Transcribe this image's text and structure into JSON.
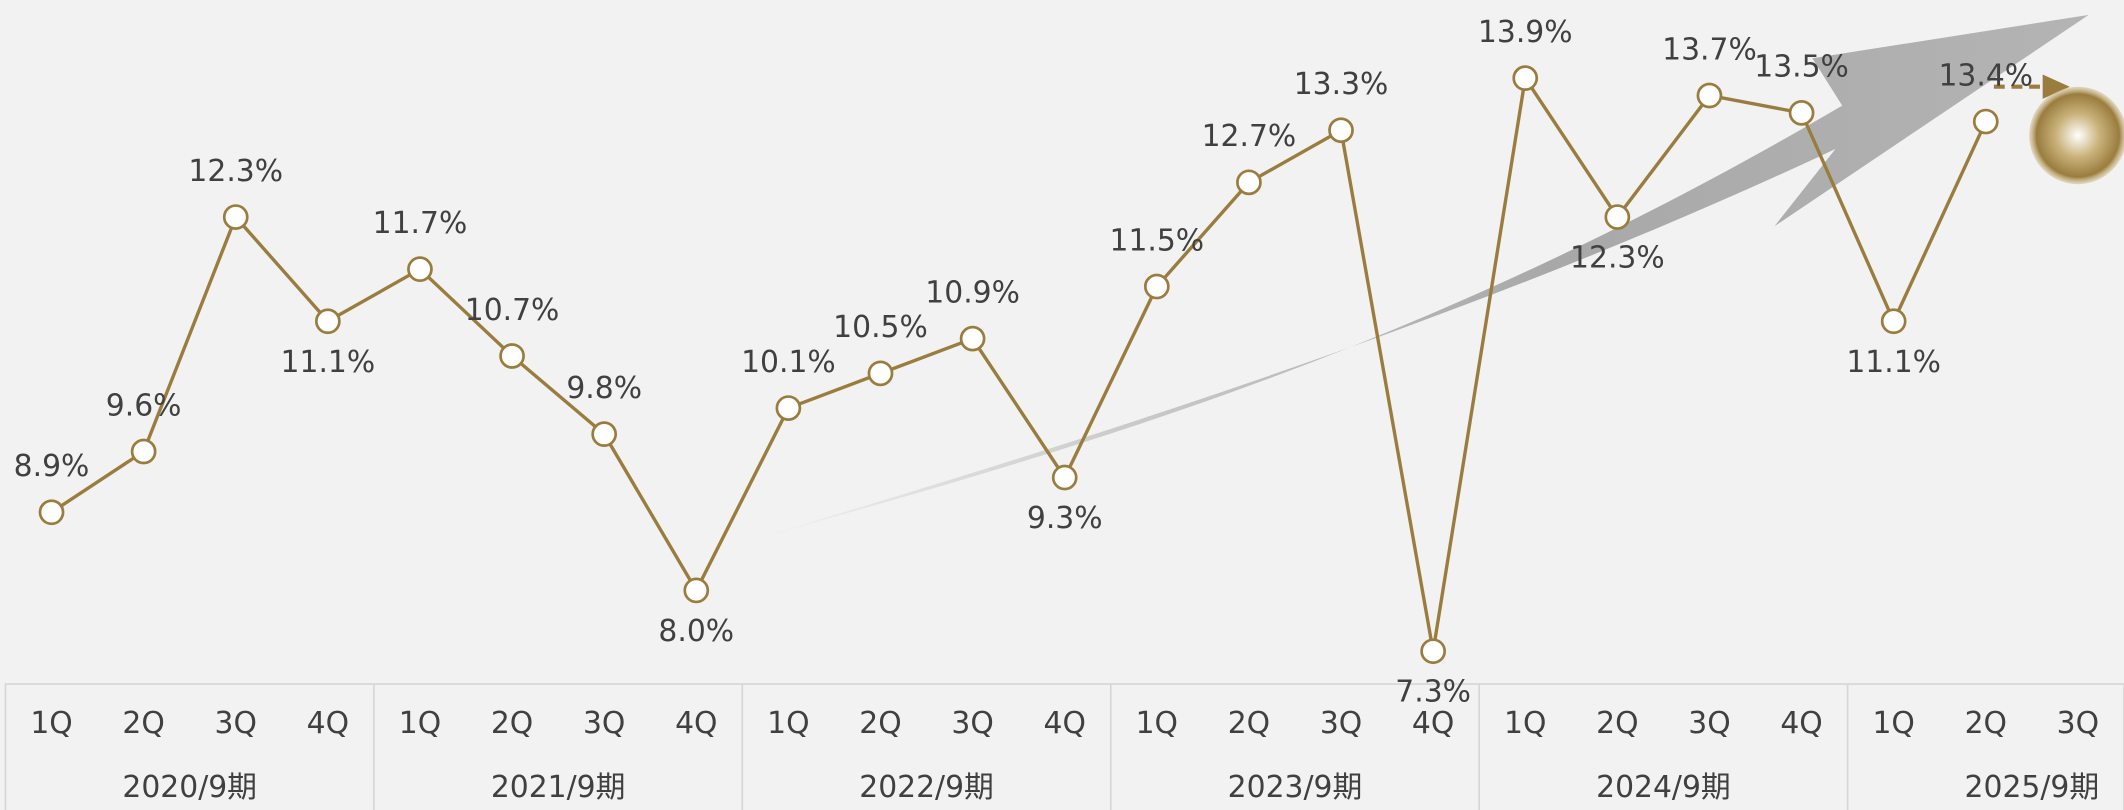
{
  "chart_data": {
    "type": "line",
    "categories": [
      "1Q",
      "2Q",
      "3Q",
      "4Q",
      "1Q",
      "2Q",
      "3Q",
      "4Q",
      "1Q",
      "2Q",
      "3Q",
      "4Q",
      "1Q",
      "2Q",
      "3Q",
      "4Q",
      "1Q",
      "2Q",
      "3Q",
      "4Q",
      "1Q",
      "2Q",
      "3Q"
    ],
    "group_labels": [
      "2020/9期",
      "2021/9期",
      "2022/9期",
      "2023/9期",
      "2024/9期",
      "2025/9期"
    ],
    "values": [
      8.9,
      9.6,
      12.3,
      11.1,
      11.7,
      10.7,
      9.8,
      8.0,
      10.1,
      10.5,
      10.9,
      9.3,
      11.5,
      12.7,
      13.3,
      7.3,
      13.9,
      12.3,
      13.7,
      13.5,
      11.1,
      13.4,
      null
    ],
    "value_labels": [
      "8.9%",
      "9.6%",
      "12.3%",
      "11.1%",
      "11.7%",
      "10.7%",
      "9.8%",
      "8.0%",
      "10.1%",
      "10.5%",
      "10.9%",
      "9.3%",
      "11.5%",
      "12.7%",
      "13.3%",
      "7.3%",
      "13.9%",
      "12.3%",
      "13.7%",
      "13.5%",
      "11.1%",
      "13.4%",
      null
    ],
    "color": "#9a7d3e",
    "ylim": [
      7.0,
      14.8
    ]
  }
}
